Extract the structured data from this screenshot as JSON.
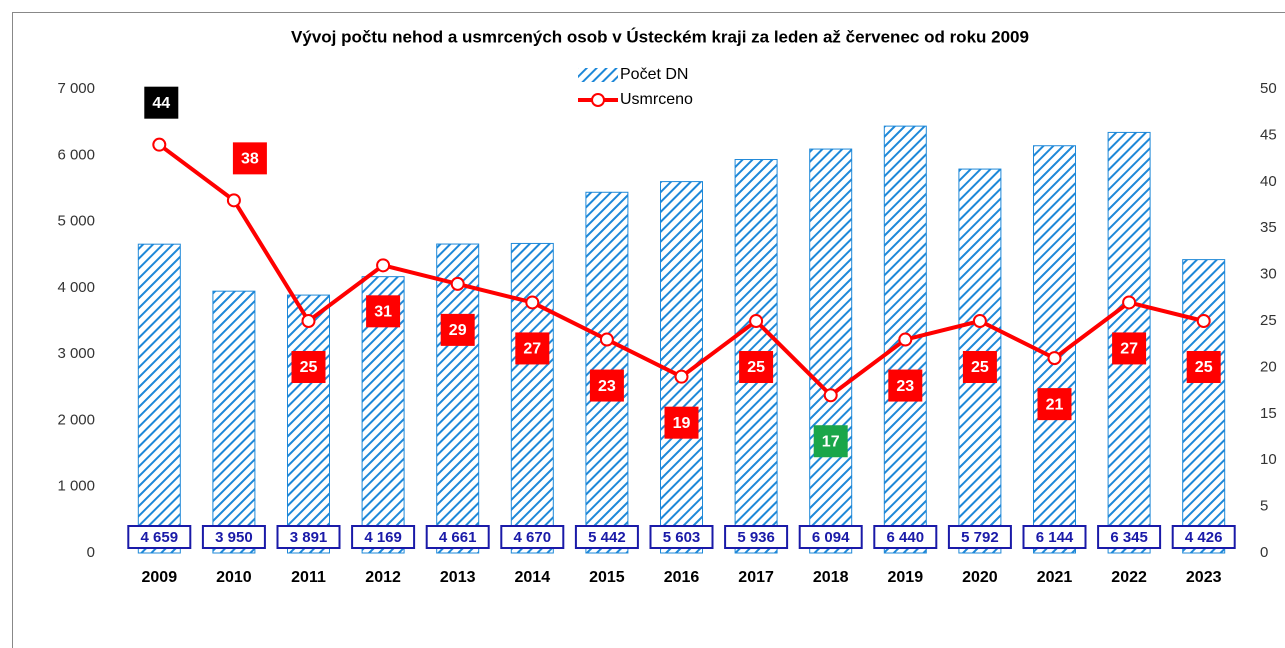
{
  "chart_data": {
    "type": "bar",
    "title": "Vývoj počtu nehod a usmrcených osob v Ústeckém kraji za leden až červenec od roku 2009",
    "categories": [
      "2009",
      "2010",
      "2011",
      "2012",
      "2013",
      "2014",
      "2015",
      "2016",
      "2017",
      "2018",
      "2019",
      "2020",
      "2021",
      "2022",
      "2023"
    ],
    "series": [
      {
        "name": "Počet DN",
        "type": "bar",
        "color": "#1e88d8",
        "values": [
          4659,
          3950,
          3891,
          4169,
          4661,
          4670,
          5442,
          5603,
          5936,
          6094,
          6440,
          5792,
          6144,
          6345,
          4426
        ],
        "value_labels": [
          "4 659",
          "3 950",
          "3 891",
          "4 169",
          "4 661",
          "4 670",
          "5 442",
          "5 603",
          "5 936",
          "6 094",
          "6 440",
          "5 792",
          "6 144",
          "6 345",
          "4 426"
        ]
      },
      {
        "name": "Usmrceno",
        "type": "line",
        "axis": "y2",
        "color": "#ff0000",
        "values": [
          44,
          38,
          25,
          31,
          29,
          27,
          23,
          19,
          25,
          17,
          23,
          25,
          21,
          27,
          25
        ],
        "label_colors": [
          "#000000",
          "#ff0000",
          "#ff0000",
          "#ff0000",
          "#ff0000",
          "#ff0000",
          "#ff0000",
          "#ff0000",
          "#ff0000",
          "#1aa64a",
          "#ff0000",
          "#ff0000",
          "#ff0000",
          "#ff0000",
          "#ff0000"
        ]
      }
    ],
    "ylim": [
      0,
      7000
    ],
    "yticks": [
      0,
      {
        "value": 1000,
        "label": "1 000"
      },
      {
        "value": 2000,
        "label": "2 000"
      },
      {
        "value": 3000,
        "label": "3 000"
      },
      {
        "value": 4000,
        "label": "4 000"
      },
      {
        "value": 5000,
        "label": "5 000"
      },
      {
        "value": 6000,
        "label": "6 000"
      },
      {
        "value": 7000,
        "label": "7 000"
      }
    ],
    "y2lim": [
      0,
      50
    ],
    "y2ticks": [
      0,
      5,
      10,
      15,
      20,
      25,
      30,
      35,
      40,
      45,
      50
    ],
    "legend": "top"
  }
}
